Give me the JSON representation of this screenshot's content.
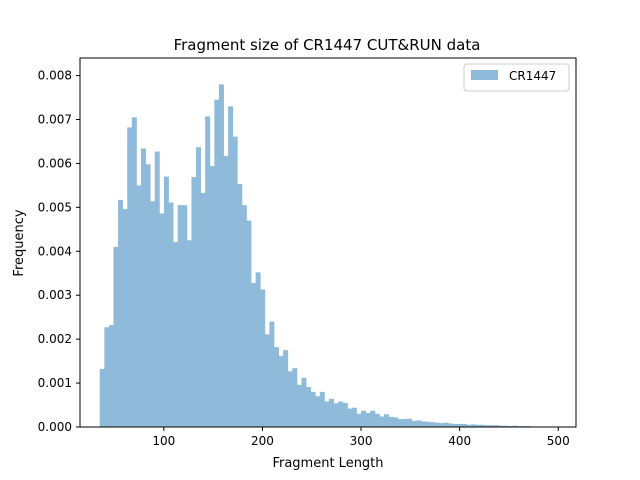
{
  "chart_data": {
    "type": "bar",
    "title": "Fragment size of CR1447 CUT&RUN data",
    "xlabel": "Fragment Length",
    "ylabel": "Frequency",
    "xlim": [
      15,
      518
    ],
    "ylim": [
      0,
      0.0084
    ],
    "xticks": [
      100,
      200,
      300,
      400,
      500
    ],
    "yticks": [
      0.0,
      0.001,
      0.002,
      0.003,
      0.004,
      0.005,
      0.006,
      0.007,
      0.008
    ],
    "ytick_labels": [
      "0.000",
      "0.001",
      "0.002",
      "0.003",
      "0.004",
      "0.005",
      "0.006",
      "0.007",
      "0.008"
    ],
    "legend": {
      "position": "top-right"
    },
    "series": [
      {
        "name": "CR1447",
        "color": "#8fbad9",
        "bin_start": 35,
        "bin_width": 4.65,
        "values": [
          0.00132,
          0.00227,
          0.00232,
          0.0041,
          0.00517,
          0.00496,
          0.00682,
          0.00705,
          0.0055,
          0.00634,
          0.00598,
          0.00514,
          0.00627,
          0.00486,
          0.0057,
          0.00511,
          0.00421,
          0.00505,
          0.00505,
          0.00425,
          0.00569,
          0.00637,
          0.00533,
          0.00707,
          0.00594,
          0.00745,
          0.0078,
          0.00617,
          0.0073,
          0.00661,
          0.00553,
          0.00505,
          0.0047,
          0.00328,
          0.00352,
          0.00313,
          0.00211,
          0.0024,
          0.00182,
          0.00162,
          0.00175,
          0.00127,
          0.00134,
          0.00096,
          0.00112,
          0.00091,
          0.0008,
          0.0007,
          0.0008,
          0.00058,
          0.00064,
          0.00054,
          0.00058,
          0.00055,
          0.00042,
          0.00044,
          0.0003,
          0.00037,
          0.00032,
          0.00037,
          0.0003,
          0.00024,
          0.00029,
          0.00023,
          0.00022,
          0.00018,
          0.00018,
          0.00019,
          0.00014,
          0.00015,
          0.00013,
          0.00012,
          0.00011,
          0.0001,
          9e-05,
          0.0001,
          8e-05,
          7e-05,
          7e-05,
          7e-05,
          5e-05,
          6e-05,
          5e-05,
          5e-05,
          4e-05,
          4e-05,
          4e-05,
          3e-05,
          3e-05,
          2e-05,
          3e-05,
          2e-05,
          2e-05,
          2e-05,
          1e-05,
          1e-05,
          1e-05,
          1e-05,
          1e-05,
          1e-05
        ]
      }
    ]
  }
}
